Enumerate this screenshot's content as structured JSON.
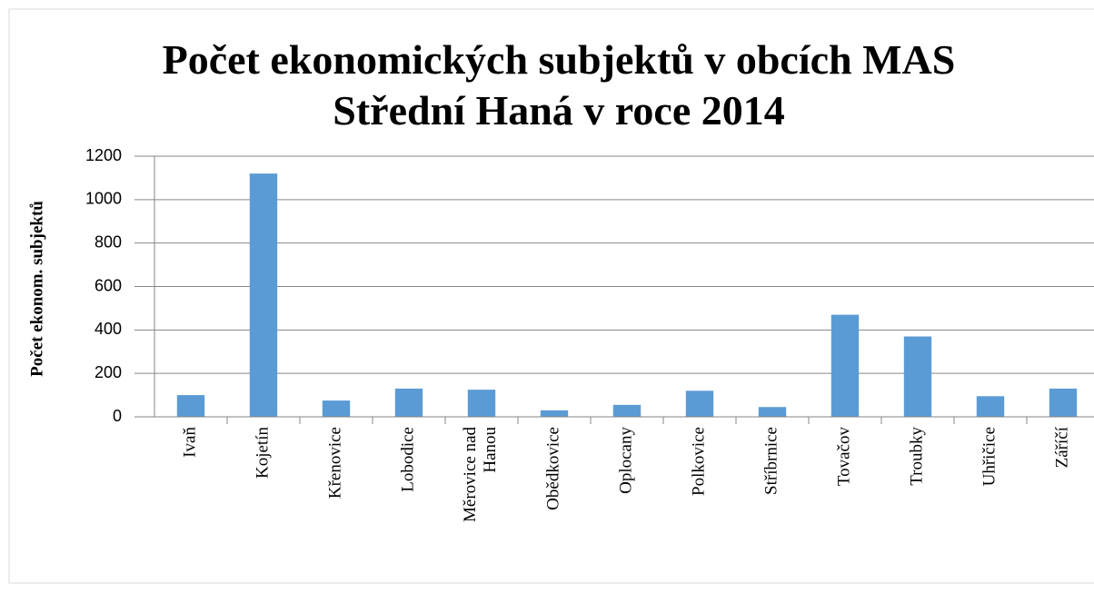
{
  "chart_data": {
    "type": "bar",
    "title": "Počet ekonomických subjektů v obcích MAS Střední Haná v roce 2014",
    "y_label": "Počet ekonom. subjektů",
    "categories": [
      "Ivaň",
      "Kojetín",
      "Křenovice",
      "Lobodice",
      "Měrovice nad Hanou",
      "Obědkovice",
      "Oplocany",
      "Polkovice",
      "Stříbrnice",
      "Tovačov",
      "Troubky",
      "Uhřičice",
      "Záříčí"
    ],
    "values": [
      100,
      1120,
      75,
      130,
      125,
      30,
      55,
      120,
      45,
      470,
      370,
      95,
      130
    ],
    "color": "#5b9bd5",
    "ylim": [
      0,
      1200
    ],
    "yticks": [
      0,
      200,
      400,
      600,
      800,
      1000,
      1200
    ],
    "grid": true
  }
}
